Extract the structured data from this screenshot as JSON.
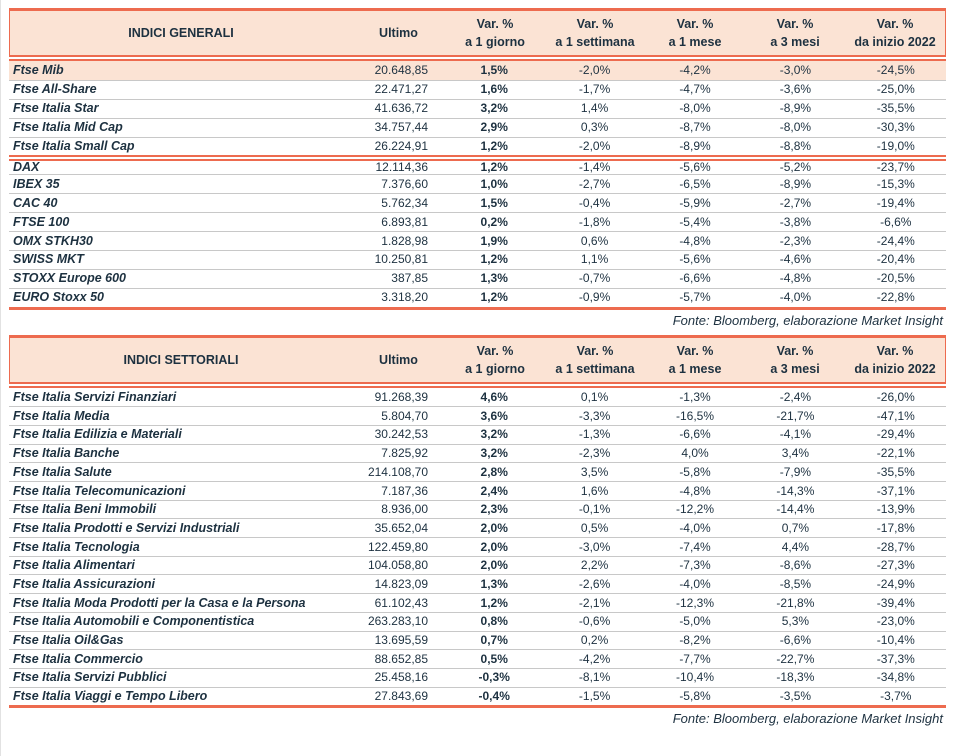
{
  "colors": {
    "accent": "#ED6B4F",
    "header_bg": "#FBE3D4",
    "text": "#1D3140",
    "row_separator": "#C8C8C8"
  },
  "source_note": "Fonte: Bloomberg, elaborazione Market Insight",
  "columns": {
    "ultimo": "Ultimo",
    "var": [
      {
        "line1": "Var. %",
        "line2": "a 1 giorno"
      },
      {
        "line1": "Var. %",
        "line2": "a 1 settimana"
      },
      {
        "line1": "Var. %",
        "line2": "a 1 mese"
      },
      {
        "line1": "Var. %",
        "line2": "a 3 mesi"
      },
      {
        "line1": "Var. %",
        "line2": "da inizio 2022"
      }
    ]
  },
  "tables": [
    {
      "title": "INDICI GENERALI",
      "rows": [
        {
          "name": "Ftse Mib",
          "highlight": true,
          "values": [
            "20.648,85",
            "1,5%",
            "-2,0%",
            "-4,2%",
            "-3,0%",
            "-24,5%"
          ]
        },
        {
          "name": "Ftse All-Share",
          "values": [
            "22.471,27",
            "1,6%",
            "-1,7%",
            "-4,7%",
            "-3,6%",
            "-25,0%"
          ]
        },
        {
          "name": "Ftse Italia Star",
          "values": [
            "41.636,72",
            "3,2%",
            "1,4%",
            "-8,0%",
            "-8,9%",
            "-35,5%"
          ]
        },
        {
          "name": "Ftse Italia Mid Cap",
          "values": [
            "34.757,44",
            "2,9%",
            "0,3%",
            "-8,7%",
            "-8,0%",
            "-30,3%"
          ]
        },
        {
          "name": "Ftse Italia Small Cap",
          "values": [
            "26.224,91",
            "1,2%",
            "-2,0%",
            "-8,9%",
            "-8,8%",
            "-19,0%"
          ]
        },
        {
          "name": "DAX",
          "section_start": true,
          "values": [
            "12.114,36",
            "1,2%",
            "-1,4%",
            "-5,6%",
            "-5,2%",
            "-23,7%"
          ]
        },
        {
          "name": "IBEX 35",
          "values": [
            "7.376,60",
            "1,0%",
            "-2,7%",
            "-6,5%",
            "-8,9%",
            "-15,3%"
          ]
        },
        {
          "name": "CAC 40",
          "values": [
            "5.762,34",
            "1,5%",
            "-0,4%",
            "-5,9%",
            "-2,7%",
            "-19,4%"
          ]
        },
        {
          "name": "FTSE 100",
          "values": [
            "6.893,81",
            "0,2%",
            "-1,8%",
            "-5,4%",
            "-3,8%",
            "-6,6%"
          ]
        },
        {
          "name": "OMX STKH30",
          "values": [
            "1.828,98",
            "1,9%",
            "0,6%",
            "-4,8%",
            "-2,3%",
            "-24,4%"
          ]
        },
        {
          "name": "SWISS MKT",
          "values": [
            "10.250,81",
            "1,2%",
            "1,1%",
            "-5,6%",
            "-4,6%",
            "-20,4%"
          ]
        },
        {
          "name": "STOXX Europe 600",
          "values": [
            "387,85",
            "1,3%",
            "-0,7%",
            "-6,6%",
            "-4,8%",
            "-20,5%"
          ]
        },
        {
          "name": "EURO Stoxx 50",
          "values": [
            "3.318,20",
            "1,2%",
            "-0,9%",
            "-5,7%",
            "-4,0%",
            "-22,8%"
          ]
        }
      ]
    },
    {
      "title": "INDICI SETTORIALI",
      "rows": [
        {
          "name": "Ftse Italia Servizi Finanziari",
          "values": [
            "91.268,39",
            "4,6%",
            "0,1%",
            "-1,3%",
            "-2,4%",
            "-26,0%"
          ]
        },
        {
          "name": "Ftse Italia Media",
          "values": [
            "5.804,70",
            "3,6%",
            "-3,3%",
            "-16,5%",
            "-21,7%",
            "-47,1%"
          ]
        },
        {
          "name": "Ftse Italia Edilizia e Materiali",
          "values": [
            "30.242,53",
            "3,2%",
            "-1,3%",
            "-6,6%",
            "-4,1%",
            "-29,4%"
          ]
        },
        {
          "name": "Ftse Italia Banche",
          "values": [
            "7.825,92",
            "3,2%",
            "-2,3%",
            "4,0%",
            "3,4%",
            "-22,1%"
          ]
        },
        {
          "name": "Ftse Italia Salute",
          "values": [
            "214.108,70",
            "2,8%",
            "3,5%",
            "-5,8%",
            "-7,9%",
            "-35,5%"
          ]
        },
        {
          "name": "Ftse Italia Telecomunicazioni",
          "values": [
            "7.187,36",
            "2,4%",
            "1,6%",
            "-4,8%",
            "-14,3%",
            "-37,1%"
          ]
        },
        {
          "name": "Ftse Italia Beni Immobili",
          "values": [
            "8.936,00",
            "2,3%",
            "-0,1%",
            "-12,2%",
            "-14,4%",
            "-13,9%"
          ]
        },
        {
          "name": "Ftse Italia Prodotti e Servizi Industriali",
          "values": [
            "35.652,04",
            "2,0%",
            "0,5%",
            "-4,0%",
            "0,7%",
            "-17,8%"
          ]
        },
        {
          "name": "Ftse Italia Tecnologia",
          "values": [
            "122.459,80",
            "2,0%",
            "-3,0%",
            "-7,4%",
            "4,4%",
            "-28,7%"
          ]
        },
        {
          "name": "Ftse Italia Alimentari",
          "values": [
            "104.058,80",
            "2,0%",
            "2,2%",
            "-7,3%",
            "-8,6%",
            "-27,3%"
          ]
        },
        {
          "name": "Ftse Italia Assicurazioni",
          "values": [
            "14.823,09",
            "1,3%",
            "-2,6%",
            "-4,0%",
            "-8,5%",
            "-24,9%"
          ]
        },
        {
          "name": "Ftse Italia Moda Prodotti per la Casa e la Persona",
          "values": [
            "61.102,43",
            "1,2%",
            "-2,1%",
            "-12,3%",
            "-21,8%",
            "-39,4%"
          ]
        },
        {
          "name": "Ftse Italia Automobili e Componentistica",
          "values": [
            "263.283,10",
            "0,8%",
            "-0,6%",
            "-5,0%",
            "5,3%",
            "-23,0%"
          ]
        },
        {
          "name": "Ftse Italia Oil&Gas",
          "values": [
            "13.695,59",
            "0,7%",
            "0,2%",
            "-8,2%",
            "-6,6%",
            "-10,4%"
          ]
        },
        {
          "name": "Ftse Italia Commercio",
          "values": [
            "88.652,85",
            "0,5%",
            "-4,2%",
            "-7,7%",
            "-22,7%",
            "-37,3%"
          ]
        },
        {
          "name": "Ftse Italia Servizi Pubblici",
          "values": [
            "25.458,16",
            "-0,3%",
            "-8,1%",
            "-10,4%",
            "-18,3%",
            "-34,8%"
          ]
        },
        {
          "name": "Ftse Italia Viaggi e Tempo Libero",
          "values": [
            "27.843,69",
            "-0,4%",
            "-1,5%",
            "-5,8%",
            "-3,5%",
            "-3,7%"
          ]
        }
      ]
    }
  ]
}
